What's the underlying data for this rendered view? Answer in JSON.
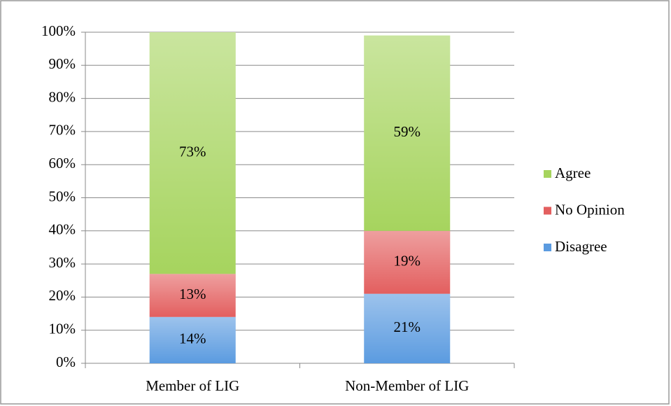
{
  "chart_data": {
    "type": "stacked_bar",
    "categories": [
      "Member of LIG",
      "Non-Member of LIG"
    ],
    "series": [
      {
        "name": "Disagree",
        "color": "#5b9be0",
        "values": [
          14,
          21
        ],
        "value_labels": [
          "14%",
          "21%"
        ]
      },
      {
        "name": "No Opinion",
        "color": "#e35f5f",
        "values": [
          13,
          19
        ],
        "value_labels": [
          "13%",
          "19%"
        ]
      },
      {
        "name": "Agree",
        "color": "#a6d45e",
        "values": [
          73,
          59
        ],
        "value_labels": [
          "73%",
          "59%"
        ]
      }
    ],
    "ylim": [
      0,
      100
    ],
    "yticks": [
      {
        "value": 0,
        "label": "0%"
      },
      {
        "value": 10,
        "label": "10%"
      },
      {
        "value": 20,
        "label": "20%"
      },
      {
        "value": 30,
        "label": "30%"
      },
      {
        "value": 40,
        "label": "40%"
      },
      {
        "value": 50,
        "label": "50%"
      },
      {
        "value": 60,
        "label": "60%"
      },
      {
        "value": 70,
        "label": "70%"
      },
      {
        "value": 80,
        "label": "80%"
      },
      {
        "value": 90,
        "label": "90%"
      },
      {
        "value": 100,
        "label": "100%"
      }
    ],
    "grid": true,
    "legend": "right"
  }
}
